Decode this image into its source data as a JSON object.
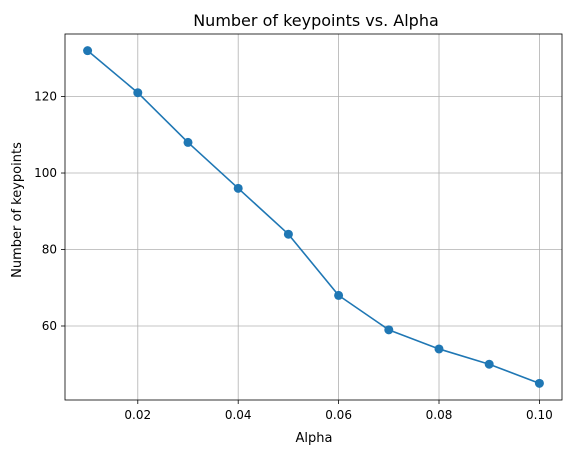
{
  "chart_data": {
    "type": "line",
    "title": "Number of keypoints vs. Alpha",
    "xlabel": "Alpha",
    "ylabel": "Number of keypoints",
    "x": [
      0.01,
      0.02,
      0.03,
      0.04,
      0.05,
      0.06,
      0.07,
      0.08,
      0.09,
      0.1
    ],
    "series": [
      {
        "values": [
          132,
          121,
          108,
          96,
          84,
          68,
          59,
          54,
          50,
          45
        ],
        "color": "#1f77b4",
        "marker": "circle"
      }
    ],
    "xticks": [
      "0.02",
      "0.04",
      "0.06",
      "0.08",
      "0.10"
    ],
    "yticks": [
      "60",
      "80",
      "100",
      "120"
    ],
    "xlim": [
      0.0055,
      0.1045
    ],
    "ylim": [
      40.65,
      136.35
    ],
    "grid": true,
    "legend": "none"
  }
}
